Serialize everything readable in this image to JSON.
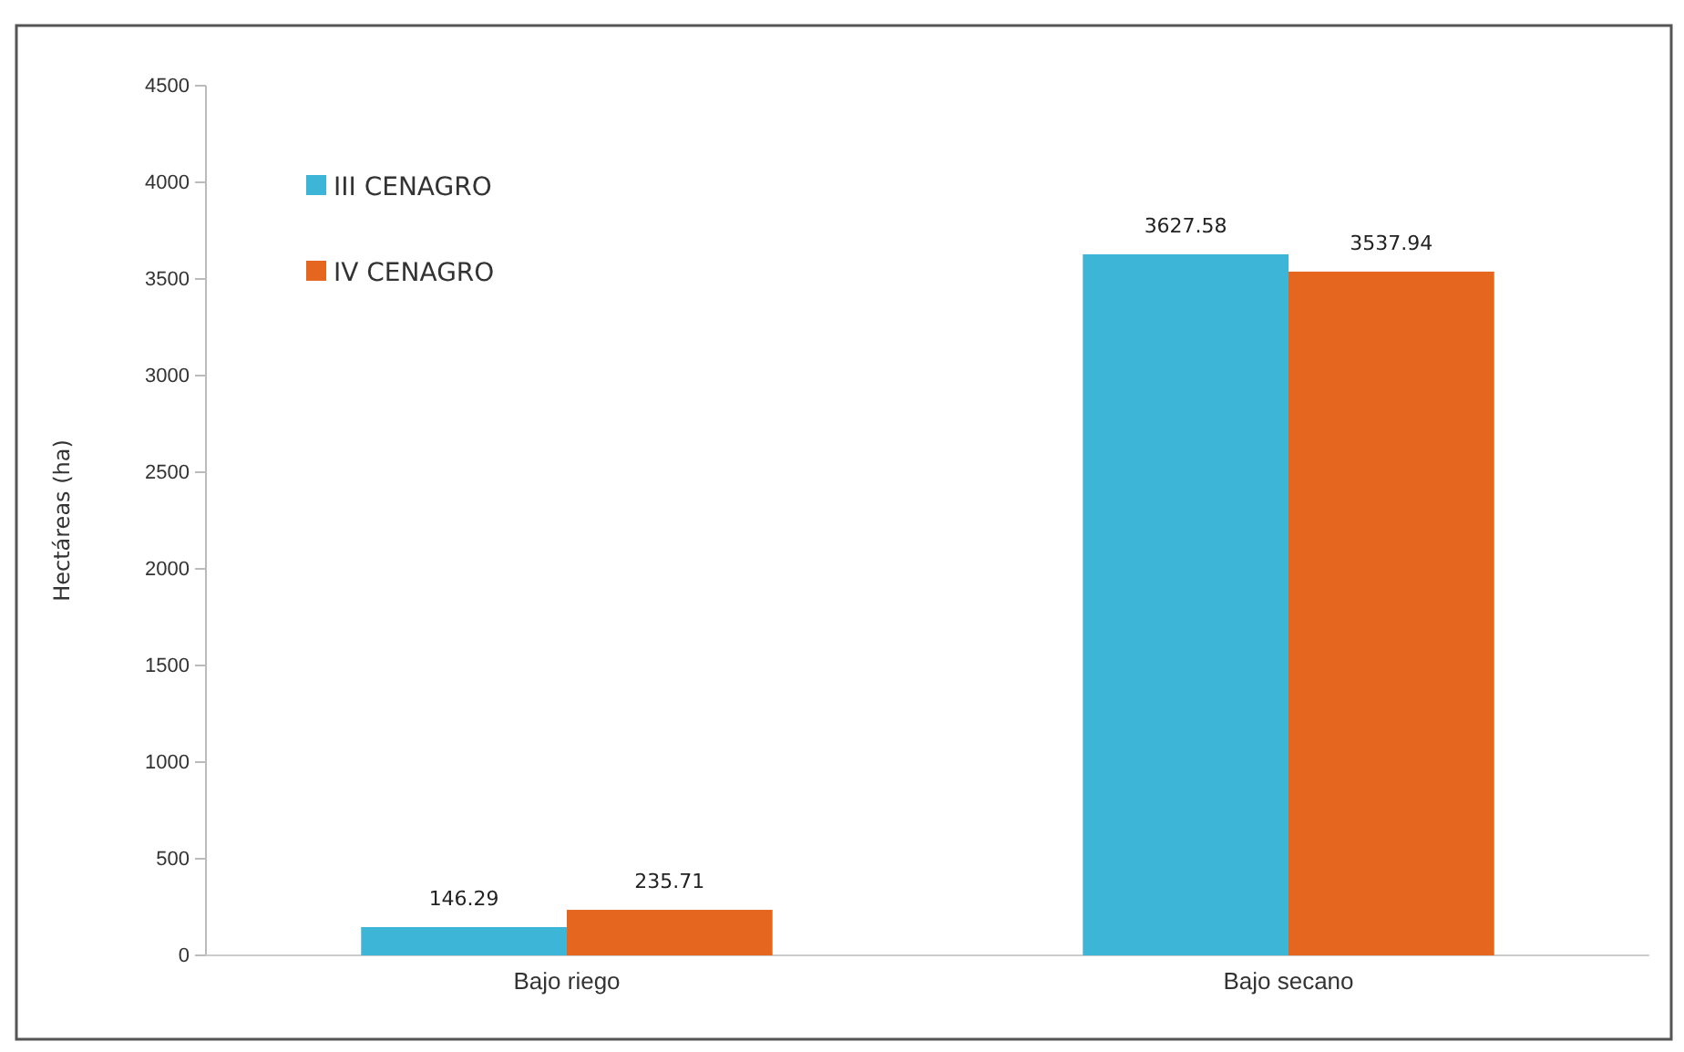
{
  "chart_data": {
    "type": "bar",
    "ylabel": "Hectáreas (ha)",
    "categories": [
      "Bajo riego",
      "Bajo secano"
    ],
    "series": [
      {
        "name": "III CENAGRO",
        "color": "#3db5d6",
        "values": [
          146.29,
          3627.58
        ]
      },
      {
        "name": "IV CENAGRO",
        "color": "#e5661e",
        "values": [
          235.71,
          3537.94
        ]
      }
    ],
    "ylim": [
      0,
      4500
    ],
    "yticks": [
      0,
      500,
      1000,
      1500,
      2000,
      2500,
      3000,
      3500,
      4000,
      4500
    ],
    "data_labels": true,
    "legend": "top left",
    "grid": false
  }
}
